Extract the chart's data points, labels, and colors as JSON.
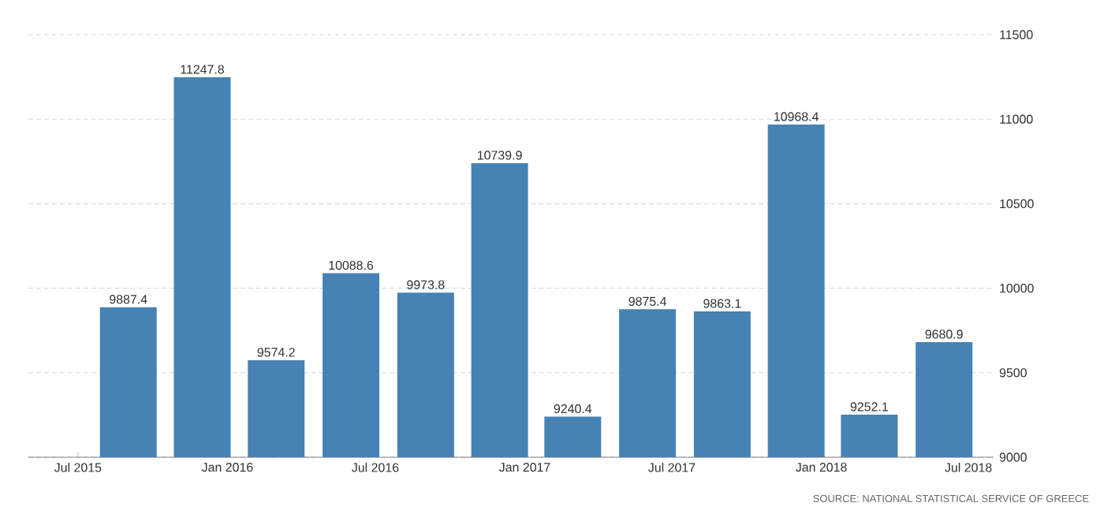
{
  "chart_data": {
    "type": "bar",
    "color": "#4682b4",
    "x": [
      "2015-09",
      "2015-12",
      "2016-03",
      "2016-06",
      "2016-09",
      "2016-12",
      "2017-03",
      "2017-06",
      "2017-09",
      "2017-12",
      "2018-03",
      "2018-06"
    ],
    "values": [
      9887.4,
      11247.8,
      9574.2,
      10088.6,
      9973.8,
      10739.9,
      9240.4,
      9875.4,
      9863.1,
      10968.4,
      9252.1,
      9680.9
    ],
    "data_labels": true,
    "ylim": [
      9000,
      11500
    ],
    "yticks": [
      9000,
      9500,
      10000,
      10500,
      11000,
      11500
    ],
    "xlim": [
      "2015-05",
      "2018-08"
    ],
    "xticks": [
      {
        "value": "2015-07",
        "label": "Jul 2015"
      },
      {
        "value": "2016-01",
        "label": "Jan 2016"
      },
      {
        "value": "2016-07",
        "label": "Jul 2016"
      },
      {
        "value": "2017-01",
        "label": "Jan 2017"
      },
      {
        "value": "2017-07",
        "label": "Jul 2017"
      },
      {
        "value": "2018-01",
        "label": "Jan 2018"
      },
      {
        "value": "2018-07",
        "label": "Jul 2018"
      }
    ],
    "grid": "y",
    "annotations": [
      "SOURCE: NATIONAL STATISTICAL SERVICE OF GREECE"
    ]
  }
}
